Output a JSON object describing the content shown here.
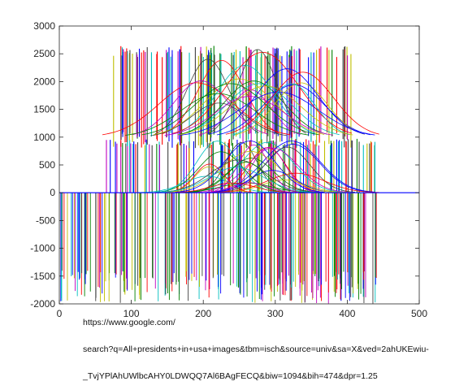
{
  "chart_data": {
    "type": "line",
    "title": "",
    "xlabel": "",
    "ylabel": "",
    "xlim": [
      0,
      500
    ],
    "ylim": [
      -2000,
      3000
    ],
    "xticks": [
      0,
      100,
      200,
      300,
      400,
      500
    ],
    "yticks": [
      -2000,
      -1500,
      -1000,
      -500,
      0,
      500,
      1000,
      1500,
      2000,
      2500,
      3000
    ],
    "grid": false,
    "legend": "none",
    "series_description_values": {
      "flat_baseline": 0,
      "low_plateau_x": [
        0,
        500
      ],
      "mid_plateau_level": 1000,
      "mid_plateau_x": [
        60,
        440
      ],
      "high_plateau_level": 2650,
      "high_plateau_x": [
        75,
        410
      ],
      "negative_spike_floor": -2000
    }
  },
  "overlay_text": {
    "line1": "https://www.google.com/",
    "line2": "search?q=All+presidents+in+usa+images&tbm=isch&source=univ&sa=X&ved=2ahUKEwiu-",
    "line3": "_TvjYPlAhUWlbcAHY0LDWQQ7Al6BAgFECQ&biw=1094&bih=474&dpr=1.25"
  },
  "colors": {
    "series_palette": [
      "#0000ff",
      "#008000",
      "#ff0000",
      "#00bfbf",
      "#bf00bf",
      "#bfbf00",
      "#404040"
    ]
  }
}
